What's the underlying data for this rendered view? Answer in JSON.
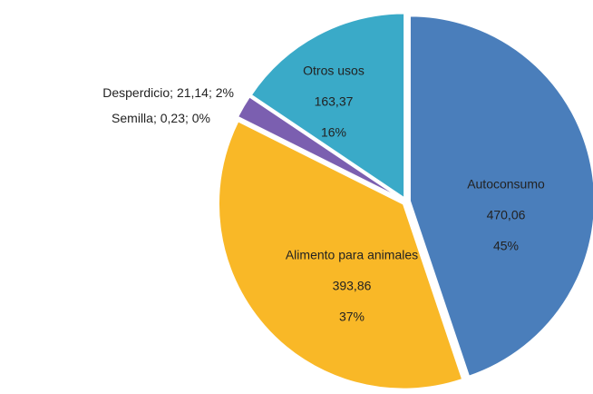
{
  "chart_data": {
    "type": "pie",
    "categories": [
      "Autoconsumo",
      "Alimento para animales",
      "Desperdicio",
      "Semilla",
      "Otros usos"
    ],
    "values": [
      470.06,
      393.86,
      21.14,
      0.23,
      163.37
    ],
    "value_labels": [
      "470,06",
      "393,86",
      "21,14",
      "0,23",
      "163,37"
    ],
    "percent_labels": [
      "45%",
      "37%",
      "2%",
      "0%",
      "16%"
    ],
    "label_separator": "; ",
    "colors": [
      "#4a7ebb",
      "#f9b827",
      "#7b5fb0",
      "#8a6cc0",
      "#3aaac8"
    ]
  }
}
